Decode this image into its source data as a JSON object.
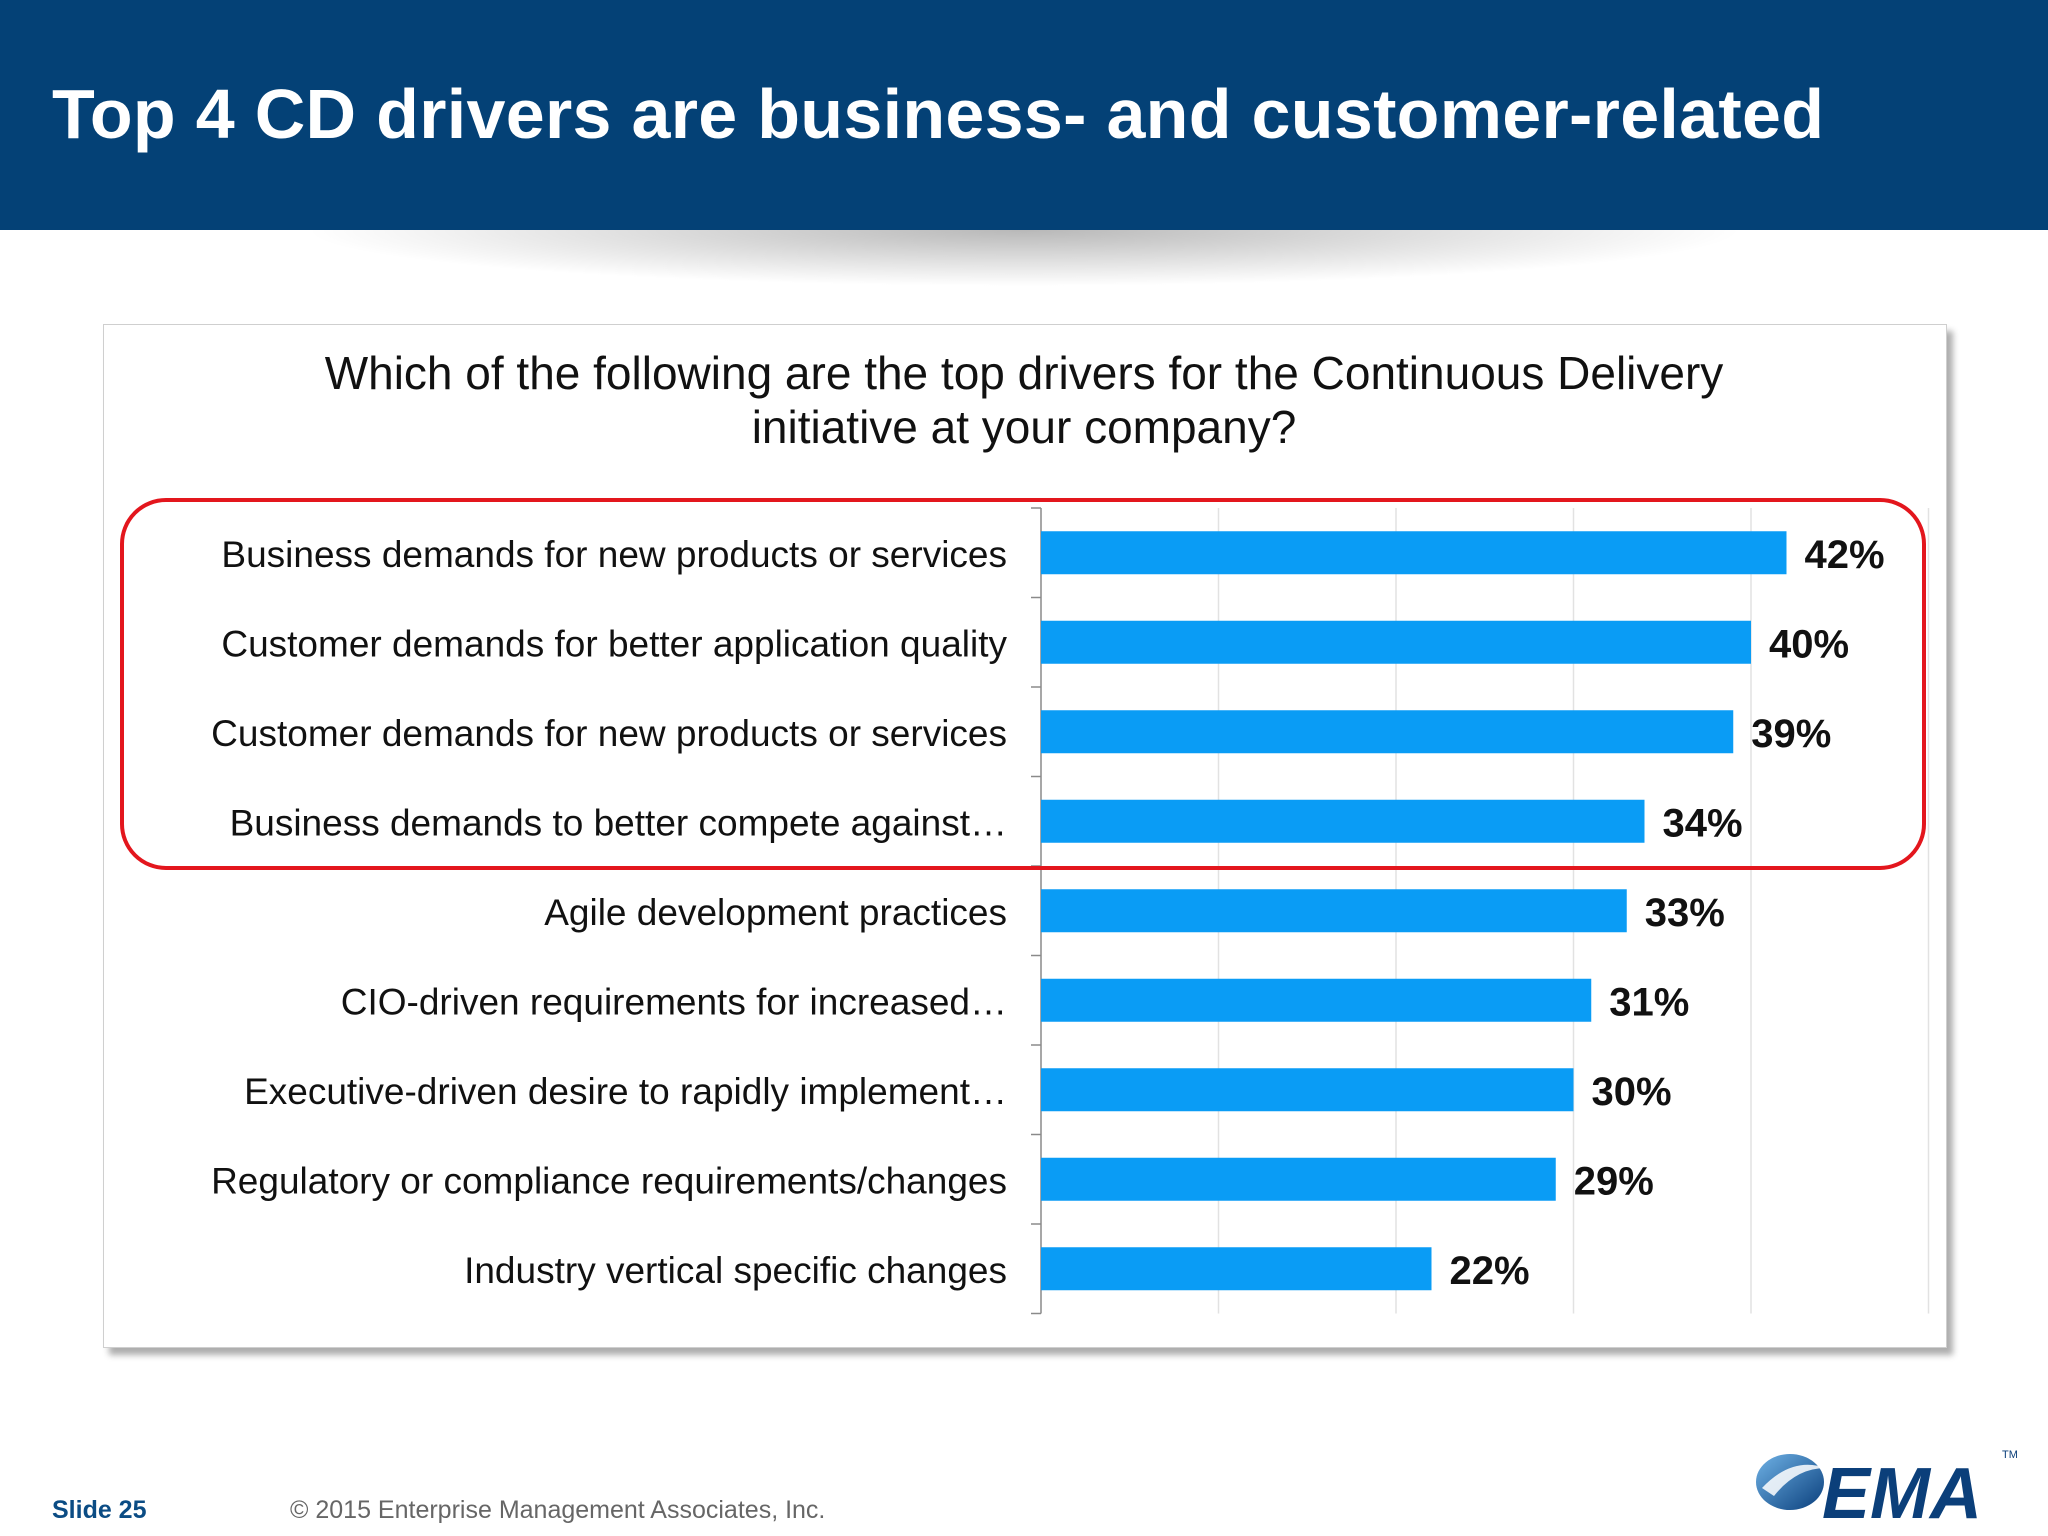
{
  "slide": {
    "title": "Top 4 CD drivers are business- and customer-related",
    "question_line1": "Which of the following are the top drivers for the Continuous Delivery",
    "question_line2": "initiative at your company?",
    "slide_number": "Slide 25",
    "copyright": "© 2015 Enterprise Management Associates, Inc.",
    "logo_text": "EMA",
    "logo_tm": "TM"
  },
  "colors": {
    "header": "#044176",
    "bar": "#0a9cf5",
    "highlight": "#e3161d"
  },
  "chart_data": {
    "type": "bar",
    "orientation": "horizontal",
    "title": "Which of the following are the top drivers for the Continuous Delivery initiative at your company?",
    "categories": [
      "Business demands for new products or services",
      "Customer demands for better application quality",
      "Customer demands for new products or services",
      "Business demands to better compete against…",
      "Agile development practices",
      "CIO-driven requirements for increased…",
      "Executive-driven desire to rapidly implement…",
      "Regulatory or compliance requirements/changes",
      "Industry vertical specific changes"
    ],
    "values": [
      42,
      40,
      39,
      34,
      33,
      31,
      30,
      29,
      22
    ],
    "data_labels": [
      "42%",
      "40%",
      "39%",
      "34%",
      "33%",
      "31%",
      "30%",
      "29%",
      "22%"
    ],
    "xlim": [
      0,
      50
    ],
    "x_gridlines": [
      10,
      20,
      30,
      40,
      50
    ],
    "grid": true,
    "legend": "none",
    "highlighted_categories": [
      0,
      1,
      2,
      3
    ]
  }
}
